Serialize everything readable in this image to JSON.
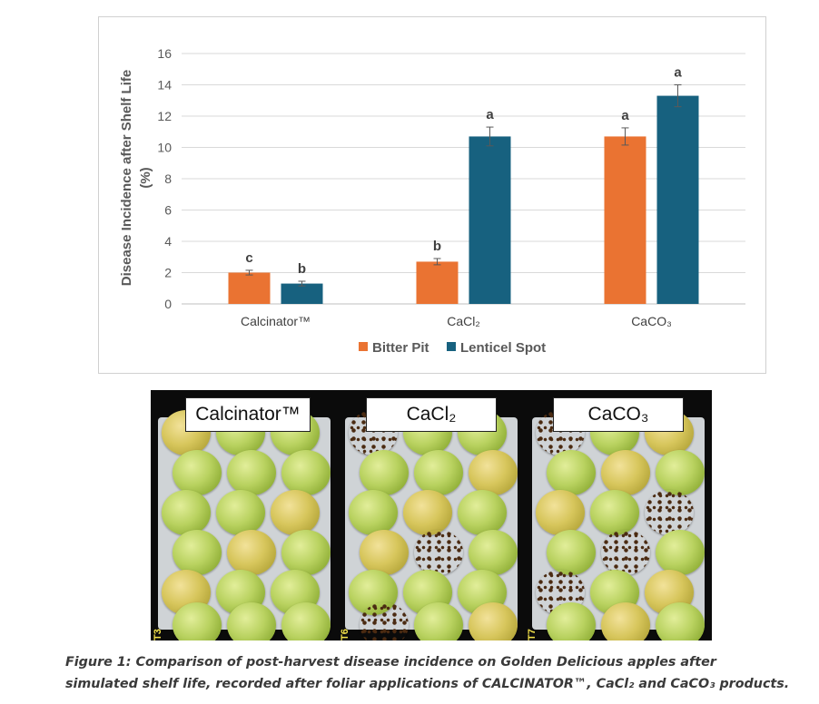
{
  "chart_data": {
    "type": "bar",
    "categories": [
      "Calcinator™",
      "CaCl₂",
      "CaCO₃"
    ],
    "series": [
      {
        "name": "Bitter Pit",
        "color": "#ea7332",
        "values": [
          2.0,
          2.7,
          10.7
        ],
        "errors": [
          0.15,
          0.2,
          0.55
        ],
        "labels": [
          "c",
          "b",
          "a"
        ]
      },
      {
        "name": "Lenticel Spot",
        "color": "#17617f",
        "values": [
          1.3,
          10.7,
          13.3
        ],
        "errors": [
          0.15,
          0.6,
          0.7
        ],
        "labels": [
          "b",
          "a",
          "a"
        ]
      }
    ],
    "ylabel_line1": "Disease Incidence after Shelf Life",
    "ylabel_line2": "(%)",
    "yticks": [
      0,
      2,
      4,
      6,
      8,
      10,
      12,
      14,
      16
    ],
    "ylim": [
      0,
      16
    ],
    "grid": true,
    "legend_position": "bottom"
  },
  "photo": {
    "panels": [
      {
        "label": "Calcinator™",
        "code": "T3"
      },
      {
        "label": "CaCl₂",
        "code": "T6"
      },
      {
        "label": "CaCO₃",
        "code": "T7"
      }
    ]
  },
  "caption": "Figure 1: Comparison of post-harvest disease incidence on Golden Delicious apples after simulated shelf life, recorded after foliar applications of CALCINATOR™, CaCl₂ and CaCO₃ products."
}
